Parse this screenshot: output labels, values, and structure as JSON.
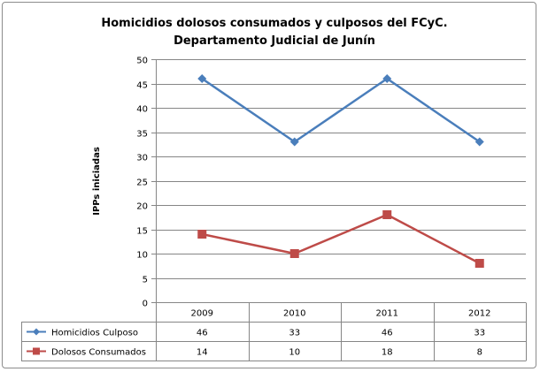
{
  "chart_data": {
    "type": "line",
    "title": "Homicidios dolosos consumados y culposos del FCyC.",
    "subtitle": "Departamento Judicial de Junín",
    "xlabel": "",
    "ylabel": "IPPs iniciadas",
    "categories": [
      "2009",
      "2010",
      "2011",
      "2012"
    ],
    "ylim": [
      0,
      50
    ],
    "yticks": [
      0,
      5,
      10,
      15,
      20,
      25,
      30,
      35,
      40,
      45,
      50
    ],
    "grid": true,
    "legend": "data-table",
    "series": [
      {
        "name": "Homicidios Culposo",
        "values": [
          46,
          33,
          46,
          33
        ],
        "color": "#4a7ebb",
        "marker": "diamond"
      },
      {
        "name": "Dolosos Consumados",
        "values": [
          14,
          10,
          18,
          8
        ],
        "color": "#be4b48",
        "marker": "square"
      }
    ]
  }
}
